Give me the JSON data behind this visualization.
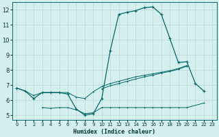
{
  "xlabel": "Humidex (Indice chaleur)",
  "x_values": [
    0,
    1,
    2,
    3,
    4,
    5,
    6,
    7,
    8,
    9,
    10,
    11,
    12,
    13,
    14,
    15,
    16,
    17,
    18,
    19,
    20,
    21,
    22,
    23
  ],
  "line1_y": [
    6.8,
    6.6,
    6.1,
    6.5,
    6.5,
    6.5,
    6.4,
    5.4,
    5.0,
    5.1,
    6.1,
    9.3,
    11.7,
    11.85,
    11.95,
    12.15,
    12.2,
    11.7,
    10.1,
    8.5,
    8.55,
    7.1,
    6.6,
    null
  ],
  "line2_y": [
    null,
    null,
    null,
    null,
    null,
    null,
    null,
    null,
    null,
    null,
    null,
    null,
    null,
    null,
    null,
    null,
    null,
    null,
    null,
    null,
    8.55,
    null,
    null,
    null
  ],
  "line_diag1_y": [
    6.8,
    6.6,
    6.3,
    6.5,
    6.5,
    6.5,
    6.5,
    6.2,
    6.1,
    6.55,
    6.9,
    7.1,
    7.25,
    7.4,
    7.55,
    7.65,
    7.75,
    7.85,
    7.95,
    8.1,
    8.3,
    null,
    null,
    null
  ],
  "line_diag2_y": [
    null,
    null,
    null,
    null,
    null,
    null,
    null,
    null,
    null,
    null,
    6.75,
    6.95,
    7.1,
    7.25,
    7.4,
    7.55,
    7.65,
    7.8,
    7.9,
    8.05,
    8.25,
    null,
    null,
    null
  ],
  "line_low_y": [
    null,
    null,
    null,
    5.5,
    5.45,
    5.5,
    5.5,
    5.35,
    5.1,
    5.15,
    5.5,
    5.5,
    5.5,
    5.5,
    5.5,
    5.5,
    5.5,
    5.5,
    5.5,
    5.5,
    5.5,
    null,
    5.8,
    null
  ],
  "bg_color": "#d5efef",
  "grid_color": "#b8d8d8",
  "line_color": "#006666",
  "xlim": [
    0,
    23
  ],
  "ylim": [
    4.7,
    12.5
  ],
  "yticks": [
    5,
    6,
    7,
    8,
    9,
    10,
    11,
    12
  ],
  "xticks": [
    0,
    1,
    2,
    3,
    4,
    5,
    6,
    7,
    8,
    9,
    10,
    11,
    12,
    13,
    14,
    15,
    16,
    17,
    18,
    19,
    20,
    21,
    22,
    23
  ]
}
